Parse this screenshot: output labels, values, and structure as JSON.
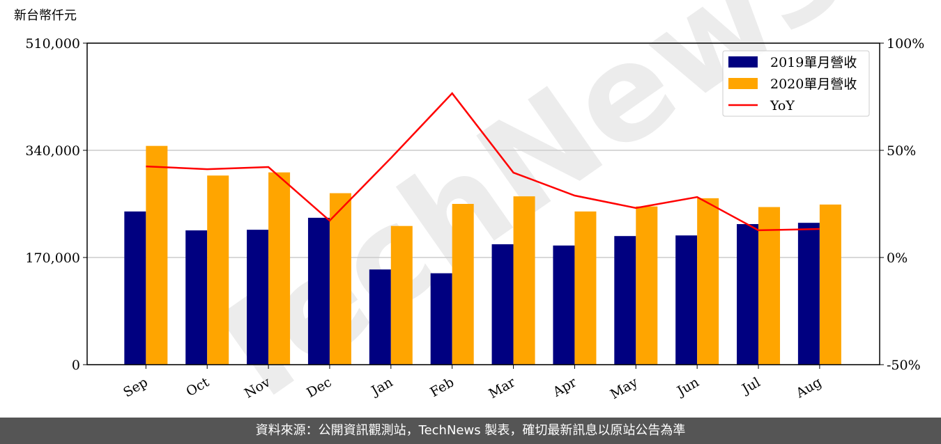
{
  "chart_data": {
    "type": "bar",
    "y_axis_label": "新台幣仟元",
    "watermark": "TechNews",
    "categories": [
      "Sep",
      "Oct",
      "Nov",
      "Dec",
      "Jan",
      "Feb",
      "Mar",
      "Apr",
      "May",
      "Jun",
      "Jul",
      "Aug"
    ],
    "series": [
      {
        "name": "2019單月營收",
        "color": "#000080",
        "values": [
          243000,
          213000,
          214000,
          233000,
          151000,
          145000,
          191000,
          189000,
          204000,
          205000,
          223000,
          225000
        ]
      },
      {
        "name": "2020單月營收",
        "color": "#ffa500",
        "values": [
          347000,
          300000,
          305000,
          272000,
          220000,
          255000,
          267000,
          243000,
          251000,
          264000,
          250000,
          254000
        ]
      },
      {
        "name": "YoY",
        "type": "line",
        "axis": "y2",
        "color": "#ff0000",
        "values": [
          42.5,
          41.2,
          42.2,
          17.2,
          46.4,
          76.6,
          39.6,
          28.9,
          23.1,
          28.2,
          12.7,
          13.3
        ]
      }
    ],
    "ylim": [
      0,
      510000
    ],
    "yticks": [
      0,
      {
        "value": 170000,
        "label": "170,000"
      },
      {
        "value": 340000,
        "label": "340,000"
      },
      {
        "value": 510000,
        "label": "510,000"
      }
    ],
    "y2lim": [
      -50,
      100
    ],
    "y2ticks": [
      {
        "value": -50,
        "label": "-50%"
      },
      {
        "value": 0,
        "label": "0%"
      },
      {
        "value": 50,
        "label": "50%"
      },
      {
        "value": 100,
        "label": "100%"
      }
    ],
    "grid": true,
    "legend": "upper right",
    "source": "資料來源：公開資訊觀測站，TechNews 製表，確切最新訊息以原站公告為準"
  }
}
